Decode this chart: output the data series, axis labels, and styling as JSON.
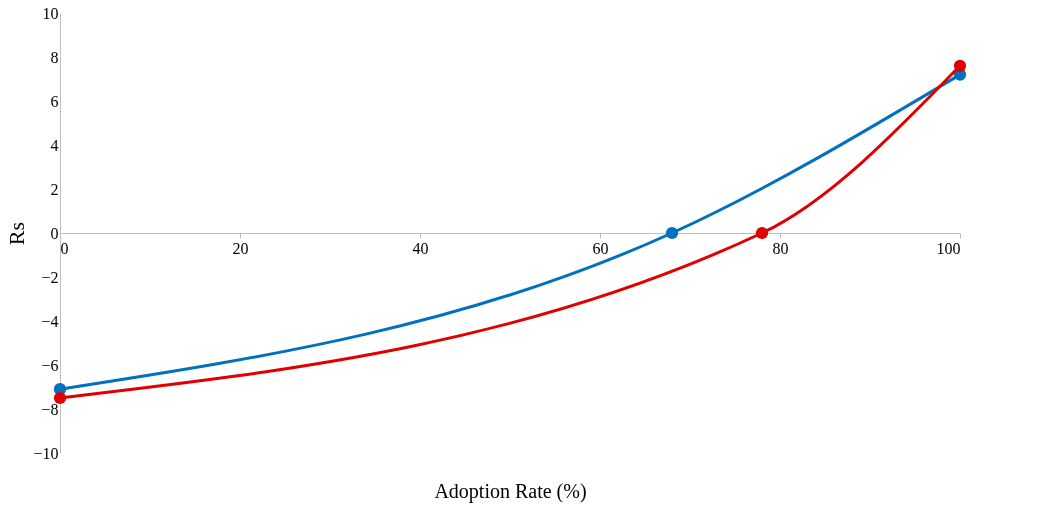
{
  "chart_data": {
    "type": "line",
    "xlabel": "Adoption Rate (%)",
    "ylabel": "Rs",
    "xlim": [
      0,
      100
    ],
    "xticks": [
      0,
      20,
      40,
      60,
      80,
      100
    ],
    "ylim": [
      -10,
      10
    ],
    "yticks": [
      -10,
      -8,
      -6,
      -4,
      -2,
      0,
      2,
      4,
      6,
      8,
      10
    ],
    "grid": false,
    "marker": "circle",
    "line_style": "solid",
    "series": [
      {
        "color": "#0070c0",
        "x": [
          0,
          68,
          100
        ],
        "values": [
          -7.1,
          0,
          7.2
        ]
      },
      {
        "color": "#e00000",
        "x": [
          0,
          78,
          100
        ],
        "values": [
          -7.5,
          0,
          7.6
        ]
      }
    ]
  }
}
